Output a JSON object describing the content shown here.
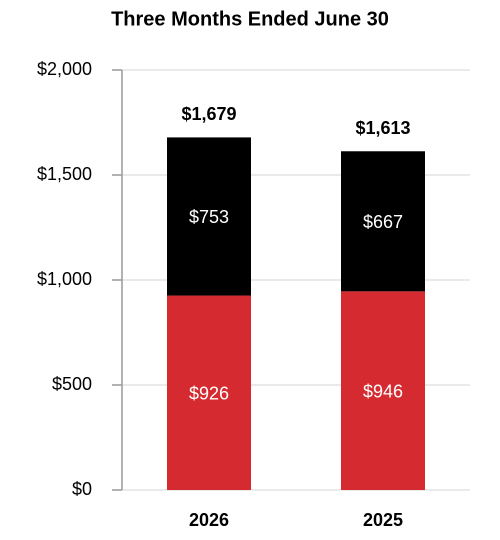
{
  "chart_data": {
    "type": "stacked_bar",
    "title": "Three Months Ended June 30",
    "categories": [
      "2026",
      "2025"
    ],
    "series": [
      {
        "color": "#d62a31",
        "values": [
          926,
          946
        ],
        "value_labels": [
          "$926",
          "$946"
        ]
      },
      {
        "color": "#000000",
        "values": [
          753,
          667
        ],
        "value_labels": [
          "$753",
          "$667"
        ]
      }
    ],
    "totals": {
      "values": [
        1679,
        1613
      ],
      "value_labels": [
        "$1,679",
        "$1,613"
      ]
    },
    "ylim": [
      0,
      2000
    ],
    "yticks": [
      {
        "value": 0,
        "label": "$0"
      },
      {
        "value": 500,
        "label": "$500"
      },
      {
        "value": 1000,
        "label": "$1,000"
      },
      {
        "value": 1500,
        "label": "$1,500"
      },
      {
        "value": 2000,
        "label": "$2,000"
      }
    ],
    "grid": true
  }
}
